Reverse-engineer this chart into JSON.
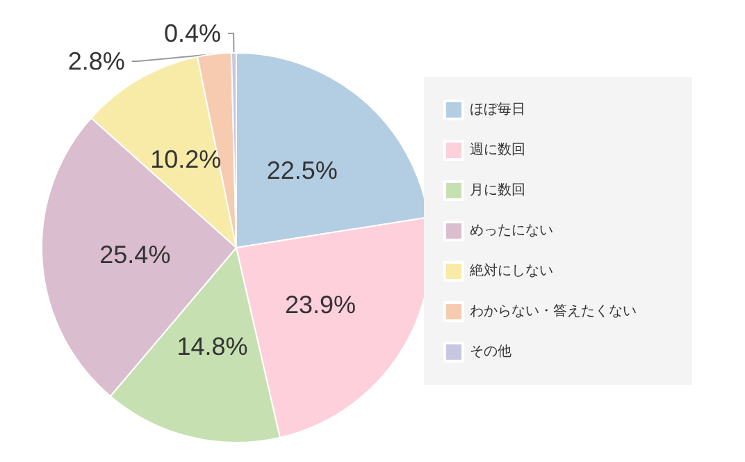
{
  "chart_data": {
    "type": "pie",
    "categories": [
      "ほぼ毎日",
      "週に数回",
      "月に数回",
      "めったにない",
      "絶対にしない",
      "わからない・答えたくない",
      "その他"
    ],
    "values": [
      22.5,
      23.9,
      14.8,
      25.4,
      10.2,
      2.8,
      0.4
    ],
    "colors": [
      "#b3cde3",
      "#fdd0dc",
      "#c6e0b2",
      "#dbbdd0",
      "#f8eba8",
      "#f6cbb0",
      "#c8c6e0"
    ],
    "value_labels": [
      "22.5%",
      "23.9%",
      "14.8%",
      "25.4%",
      "10.2%",
      "2.8%",
      "0.4%"
    ],
    "legend": "right"
  }
}
